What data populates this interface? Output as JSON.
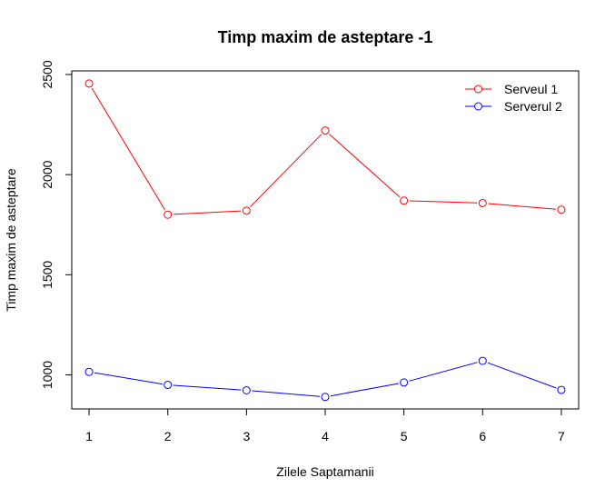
{
  "chart_data": {
    "type": "line",
    "title": "Timp maxim de asteptare -1",
    "xlabel": "Zilele Saptamanii",
    "ylabel": "Timp maxim de asteptare",
    "x": [
      1,
      2,
      3,
      4,
      5,
      6,
      7
    ],
    "x_ticks": [
      "1",
      "2",
      "3",
      "4",
      "5",
      "6",
      "7"
    ],
    "y_ticks": [
      "1000",
      "1500",
      "2000",
      "2500"
    ],
    "xlim": [
      0.78,
      7.22
    ],
    "ylim": [
      830,
      2518
    ],
    "legend_position": "top-right",
    "series": [
      {
        "name": "Serveul 1",
        "color": "#ff0000",
        "marker": "open-circle",
        "values": [
          2455,
          1800,
          1820,
          2220,
          1870,
          1858,
          1825
        ]
      },
      {
        "name": "Serverul 2",
        "color": "#0000ff",
        "marker": "open-circle",
        "values": [
          1015,
          950,
          923,
          890,
          962,
          1070,
          925
        ]
      }
    ]
  }
}
